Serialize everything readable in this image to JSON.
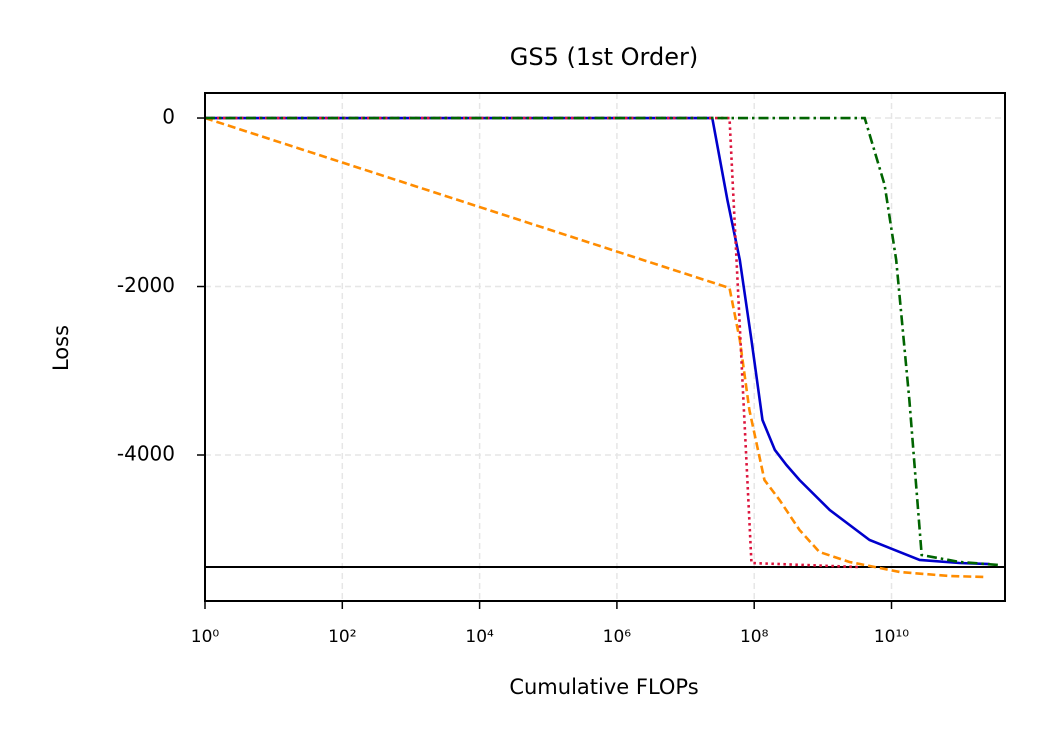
{
  "chart_data": {
    "type": "line",
    "title": "GS5 (1st Order)",
    "x_label": "Cumulative FLOPs",
    "y_label": "Loss",
    "x_scale": "log",
    "xlim": [
      1,
      450000000000.0
    ],
    "ylim": [
      -5733,
      297
    ],
    "xticks": [
      {
        "value": 1,
        "label": "10⁰"
      },
      {
        "value": 100,
        "label": "10²"
      },
      {
        "value": 10000,
        "label": "10⁴"
      },
      {
        "value": 1000000,
        "label": "10⁶"
      },
      {
        "value": 100000000,
        "label": "10⁸"
      },
      {
        "value": 10000000000,
        "label": "10¹⁰"
      }
    ],
    "yticks": [
      -4000,
      -2000,
      0
    ],
    "grid": true,
    "hlines": [
      -5330
    ],
    "hline_color": "#000000",
    "series": [
      {
        "color": "#0000cc",
        "dash": "solid",
        "x": [
          1,
          24500000.0,
          40700000.0,
          61700000.0,
          91200000.0,
          132000000.0,
          200000000.0,
          295000000.0,
          457000000.0,
          1260000000.0,
          4790000000.0,
          25700000000.0,
          97700000000.0,
          269000000000.0
        ],
        "values": [
          0,
          0,
          -973,
          -1685,
          -2635,
          -3585,
          -3940,
          -4119,
          -4297,
          -4653,
          -5009,
          -5246,
          -5282,
          -5294
        ]
      },
      {
        "color": "#ff8c00",
        "dash": "dashed",
        "x": [
          1,
          43700000.0,
          61700000.0,
          85100000.0,
          141000000.0,
          234000000.0,
          457000000.0,
          891000000.0,
          2450000000.0,
          13200000000.0,
          69200000000.0,
          224000000000.0
        ],
        "values": [
          0,
          -2018,
          -2635,
          -3466,
          -4297,
          -4534,
          -4890,
          -5151,
          -5270,
          -5389,
          -5436,
          -5448
        ]
      },
      {
        "color": "#dc143c",
        "dash": "dotted",
        "x": [
          1,
          43700000.0,
          91200000.0,
          3390000000.0
        ],
        "values": [
          0,
          0,
          -5282,
          -5330
        ]
      },
      {
        "color": "#006400",
        "dash": "dashdot",
        "x": [
          1,
          4070000000.0,
          7940000000.0,
          11700000000.0,
          18200000000.0,
          27500000000.0,
          97700000000.0,
          372000000000.0
        ],
        "values": [
          0,
          0,
          -795,
          -1685,
          -3347,
          -5187,
          -5270,
          -5306
        ]
      }
    ]
  }
}
